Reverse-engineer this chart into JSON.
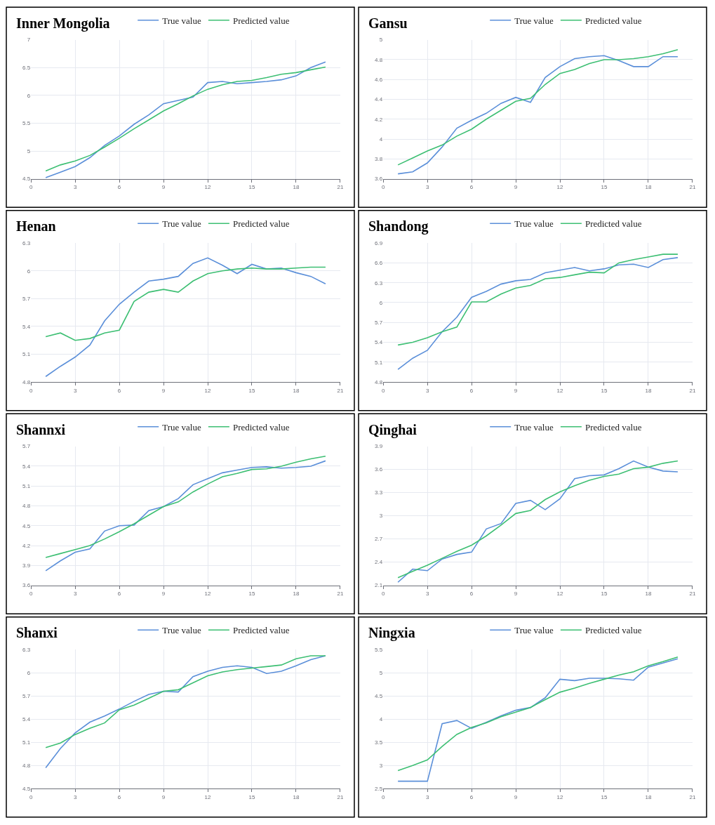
{
  "chart_data": [
    {
      "type": "line",
      "title": "Inner Mongolia",
      "x": [
        1,
        2,
        3,
        4,
        5,
        6,
        7,
        8,
        9,
        10,
        11,
        12,
        13,
        14,
        15,
        16,
        17,
        18,
        19,
        20
      ],
      "xlim": [
        0,
        21
      ],
      "xticks": [
        0,
        3,
        6,
        9,
        12,
        15,
        18,
        21
      ],
      "ylim": [
        4.5,
        7
      ],
      "yticks": [
        4.5,
        5,
        5.5,
        6,
        6.5,
        7
      ],
      "grid": true,
      "legend": "top",
      "series": [
        {
          "name": "True value",
          "color": "#5b8fd9",
          "values": [
            4.52,
            4.62,
            4.72,
            4.88,
            5.1,
            5.27,
            5.48,
            5.65,
            5.85,
            5.91,
            5.97,
            6.23,
            6.25,
            6.21,
            6.23,
            6.25,
            6.28,
            6.35,
            6.5,
            6.6
          ]
        },
        {
          "name": "Predicted value",
          "color": "#3dbf73",
          "values": [
            4.64,
            4.75,
            4.82,
            4.92,
            5.07,
            5.23,
            5.4,
            5.56,
            5.72,
            5.85,
            5.99,
            6.11,
            6.19,
            6.25,
            6.27,
            6.32,
            6.38,
            6.41,
            6.46,
            6.51
          ]
        }
      ]
    },
    {
      "type": "line",
      "title": "Gansu",
      "x": [
        1,
        2,
        3,
        4,
        5,
        6,
        7,
        8,
        9,
        10,
        11,
        12,
        13,
        14,
        15,
        16,
        17,
        18,
        19,
        20
      ],
      "xlim": [
        0,
        21
      ],
      "xticks": [
        0,
        3,
        6,
        9,
        12,
        15,
        18,
        21
      ],
      "ylim": [
        3.6,
        5
      ],
      "yticks": [
        3.6,
        3.8,
        4,
        4.2,
        4.4,
        4.6,
        4.8,
        5
      ],
      "grid": true,
      "legend": "top",
      "series": [
        {
          "name": "True value",
          "color": "#5b8fd9",
          "values": [
            3.65,
            3.67,
            3.76,
            3.92,
            4.11,
            4.19,
            4.26,
            4.36,
            4.42,
            4.37,
            4.62,
            4.73,
            4.81,
            4.83,
            4.84,
            4.79,
            4.73,
            4.73,
            4.83,
            4.83
          ]
        },
        {
          "name": "Predicted value",
          "color": "#3dbf73",
          "values": [
            3.74,
            3.81,
            3.88,
            3.94,
            4.03,
            4.1,
            4.2,
            4.29,
            4.38,
            4.41,
            4.55,
            4.66,
            4.7,
            4.76,
            4.8,
            4.8,
            4.81,
            4.83,
            4.86,
            4.9
          ]
        }
      ]
    },
    {
      "type": "line",
      "title": "Henan",
      "x": [
        1,
        2,
        3,
        4,
        5,
        6,
        7,
        8,
        9,
        10,
        11,
        12,
        13,
        14,
        15,
        16,
        17,
        18,
        19,
        20
      ],
      "xlim": [
        0,
        21
      ],
      "xticks": [
        0,
        3,
        6,
        9,
        12,
        15,
        18,
        21
      ],
      "ylim": [
        4.8,
        6.3
      ],
      "yticks": [
        4.8,
        5.1,
        5.4,
        5.7,
        6,
        6.3
      ],
      "grid": true,
      "legend": "top",
      "series": [
        {
          "name": "True value",
          "color": "#5b8fd9",
          "values": [
            4.86,
            4.97,
            5.07,
            5.2,
            5.46,
            5.64,
            5.77,
            5.89,
            5.91,
            5.94,
            6.08,
            6.14,
            6.06,
            5.97,
            6.07,
            6.02,
            6.03,
            5.98,
            5.94,
            5.86
          ]
        },
        {
          "name": "Predicted value",
          "color": "#3dbf73",
          "values": [
            5.29,
            5.33,
            5.25,
            5.27,
            5.33,
            5.36,
            5.67,
            5.77,
            5.8,
            5.77,
            5.89,
            5.97,
            6.0,
            6.02,
            6.03,
            6.02,
            6.02,
            6.03,
            6.04,
            6.04
          ]
        }
      ]
    },
    {
      "type": "line",
      "title": "Shandong",
      "x": [
        1,
        2,
        3,
        4,
        5,
        6,
        7,
        8,
        9,
        10,
        11,
        12,
        13,
        14,
        15,
        16,
        17,
        18,
        19,
        20
      ],
      "xlim": [
        0,
        21
      ],
      "xticks": [
        0,
        3,
        6,
        9,
        12,
        15,
        18,
        21
      ],
      "ylim": [
        4.8,
        6.9
      ],
      "yticks": [
        4.8,
        5.1,
        5.4,
        5.7,
        6,
        6.3,
        6.6,
        6.9
      ],
      "grid": true,
      "legend": "top",
      "series": [
        {
          "name": "True value",
          "color": "#5b8fd9",
          "values": [
            4.99,
            5.16,
            5.28,
            5.56,
            5.78,
            6.08,
            6.17,
            6.28,
            6.33,
            6.35,
            6.45,
            6.49,
            6.53,
            6.48,
            6.51,
            6.57,
            6.58,
            6.53,
            6.65,
            6.68
          ]
        },
        {
          "name": "Predicted value",
          "color": "#3dbf73",
          "values": [
            5.36,
            5.4,
            5.47,
            5.56,
            5.63,
            6.01,
            6.01,
            6.13,
            6.22,
            6.26,
            6.36,
            6.38,
            6.42,
            6.46,
            6.45,
            6.6,
            6.65,
            6.69,
            6.73,
            6.73
          ]
        }
      ]
    },
    {
      "type": "line",
      "title": "Shannxi",
      "x": [
        1,
        2,
        3,
        4,
        5,
        6,
        7,
        8,
        9,
        10,
        11,
        12,
        13,
        14,
        15,
        16,
        17,
        18,
        19,
        20
      ],
      "xlim": [
        0,
        21
      ],
      "xticks": [
        0,
        3,
        6,
        9,
        12,
        15,
        18,
        21
      ],
      "ylim": [
        3.6,
        5.7
      ],
      "yticks": [
        3.6,
        3.9,
        4.2,
        4.5,
        4.8,
        5.1,
        5.4,
        5.7
      ],
      "grid": true,
      "legend": "top",
      "series": [
        {
          "name": "True value",
          "color": "#5b8fd9",
          "values": [
            3.82,
            3.97,
            4.1,
            4.15,
            4.42,
            4.5,
            4.51,
            4.73,
            4.79,
            4.91,
            5.12,
            5.21,
            5.3,
            5.34,
            5.38,
            5.39,
            5.37,
            5.38,
            5.4,
            5.48
          ]
        },
        {
          "name": "Predicted value",
          "color": "#3dbf73",
          "values": [
            4.02,
            4.08,
            4.14,
            4.2,
            4.3,
            4.41,
            4.53,
            4.66,
            4.79,
            4.86,
            5.01,
            5.13,
            5.24,
            5.29,
            5.35,
            5.36,
            5.4,
            5.46,
            5.51,
            5.55
          ]
        }
      ]
    },
    {
      "type": "line",
      "title": "Qinghai",
      "x": [
        1,
        2,
        3,
        4,
        5,
        6,
        7,
        8,
        9,
        10,
        11,
        12,
        13,
        14,
        15,
        16,
        17,
        18,
        19,
        20
      ],
      "xlim": [
        0,
        21
      ],
      "xticks": [
        0,
        3,
        6,
        9,
        12,
        15,
        18,
        21
      ],
      "ylim": [
        2.1,
        3.9
      ],
      "yticks": [
        2.1,
        2.4,
        2.7,
        3,
        3.3,
        3.6,
        3.9
      ],
      "grid": true,
      "legend": "top",
      "series": [
        {
          "name": "True value",
          "color": "#5b8fd9",
          "values": [
            2.14,
            2.31,
            2.29,
            2.44,
            2.5,
            2.53,
            2.83,
            2.9,
            3.16,
            3.2,
            3.08,
            3.22,
            3.48,
            3.52,
            3.53,
            3.61,
            3.71,
            3.63,
            3.58,
            3.57
          ]
        },
        {
          "name": "Predicted value",
          "color": "#3dbf73",
          "values": [
            2.2,
            2.28,
            2.36,
            2.45,
            2.54,
            2.62,
            2.74,
            2.88,
            3.03,
            3.07,
            3.21,
            3.31,
            3.39,
            3.46,
            3.51,
            3.54,
            3.61,
            3.63,
            3.68,
            3.71
          ]
        }
      ]
    },
    {
      "type": "line",
      "title": "Shanxi",
      "x": [
        1,
        2,
        3,
        4,
        5,
        6,
        7,
        8,
        9,
        10,
        11,
        12,
        13,
        14,
        15,
        16,
        17,
        18,
        19,
        20
      ],
      "xlim": [
        0,
        21
      ],
      "xticks": [
        0,
        3,
        6,
        9,
        12,
        15,
        18,
        21
      ],
      "ylim": [
        4.5,
        6.3
      ],
      "yticks": [
        4.5,
        4.8,
        5.1,
        5.4,
        5.7,
        6,
        6.3
      ],
      "grid": true,
      "legend": "top",
      "series": [
        {
          "name": "True value",
          "color": "#5b8fd9",
          "values": [
            4.77,
            5.02,
            5.22,
            5.36,
            5.44,
            5.53,
            5.63,
            5.72,
            5.76,
            5.75,
            5.95,
            6.02,
            6.07,
            6.09,
            6.07,
            5.99,
            6.02,
            6.09,
            6.17,
            6.22
          ]
        },
        {
          "name": "Predicted value",
          "color": "#3dbf73",
          "values": [
            5.03,
            5.09,
            5.2,
            5.28,
            5.35,
            5.52,
            5.58,
            5.67,
            5.76,
            5.78,
            5.87,
            5.96,
            6.01,
            6.04,
            6.06,
            6.08,
            6.1,
            6.18,
            6.22,
            6.22
          ]
        }
      ]
    },
    {
      "type": "line",
      "title": "Ningxia",
      "x": [
        1,
        2,
        3,
        4,
        5,
        6,
        7,
        8,
        9,
        10,
        11,
        12,
        13,
        14,
        15,
        16,
        17,
        18,
        19,
        20
      ],
      "xlim": [
        0,
        21
      ],
      "xticks": [
        0,
        3,
        6,
        9,
        12,
        15,
        18,
        21
      ],
      "ylim": [
        2.5,
        5.5
      ],
      "yticks": [
        2.5,
        3,
        3.5,
        4,
        4.5,
        5,
        5.5
      ],
      "grid": true,
      "legend": "top",
      "series": [
        {
          "name": "True value",
          "color": "#5b8fd9",
          "values": [
            2.66,
            2.66,
            2.66,
            3.9,
            3.97,
            3.8,
            3.93,
            4.07,
            4.19,
            4.25,
            4.46,
            4.86,
            4.83,
            4.88,
            4.88,
            4.87,
            4.84,
            5.12,
            5.21,
            5.3
          ]
        },
        {
          "name": "Predicted value",
          "color": "#3dbf73",
          "values": [
            2.89,
            3.0,
            3.12,
            3.41,
            3.67,
            3.82,
            3.92,
            4.05,
            4.15,
            4.25,
            4.42,
            4.58,
            4.67,
            4.77,
            4.86,
            4.95,
            5.02,
            5.15,
            5.24,
            5.34
          ]
        }
      ]
    }
  ]
}
